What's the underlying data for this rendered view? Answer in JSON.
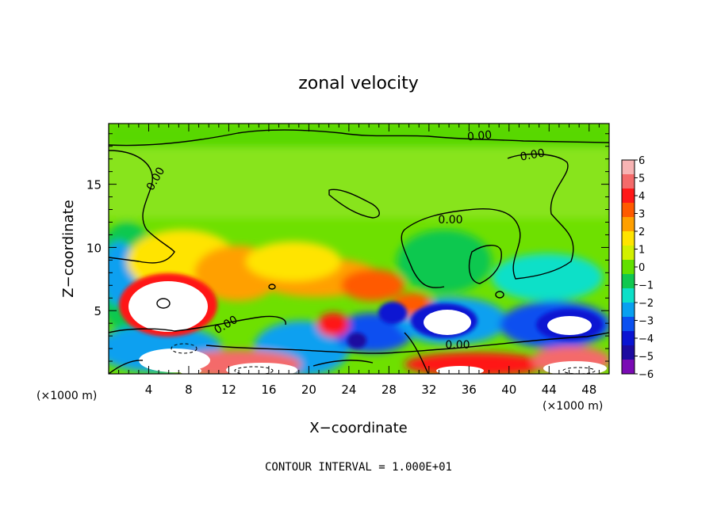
{
  "chart_data": {
    "type": "heatmap",
    "title": "zonal velocity",
    "xlabel": "X−coordinate",
    "ylabel": "Z−coordinate",
    "x_unit_left": "(×1000 m)",
    "x_unit_right": "(×1000 m)",
    "footer": "CONTOUR INTERVAL = 1.000E+01",
    "xlim": [
      0,
      50
    ],
    "ylim": [
      0,
      19.8
    ],
    "x_ticks": [
      "4",
      "8",
      "12",
      "16",
      "20",
      "24",
      "28",
      "32",
      "36",
      "40",
      "44",
      "48"
    ],
    "y_ticks": [
      "5",
      "10",
      "15"
    ],
    "contour_labels": [
      "0.00",
      "0.00",
      "0.00",
      "0.00",
      "0.00",
      "0.00"
    ],
    "colorbar": {
      "range": [
        -6,
        6
      ],
      "tick_labels": [
        "6",
        "5",
        "4",
        "3",
        "2",
        "1",
        "0",
        "−1",
        "−2",
        "−3",
        "−4",
        "−5",
        "−6"
      ],
      "colors": [
        "#f7b3b3",
        "#f46a6a",
        "#ff1818",
        "#ff5a00",
        "#ffa000",
        "#ffe400",
        "#d2f000",
        "#62e000",
        "#10c850",
        "#0ce0c8",
        "#08a0f0",
        "#0a50f0",
        "#0a14d2",
        "#1c0aa0",
        "#7a0ab4"
      ]
    }
  }
}
